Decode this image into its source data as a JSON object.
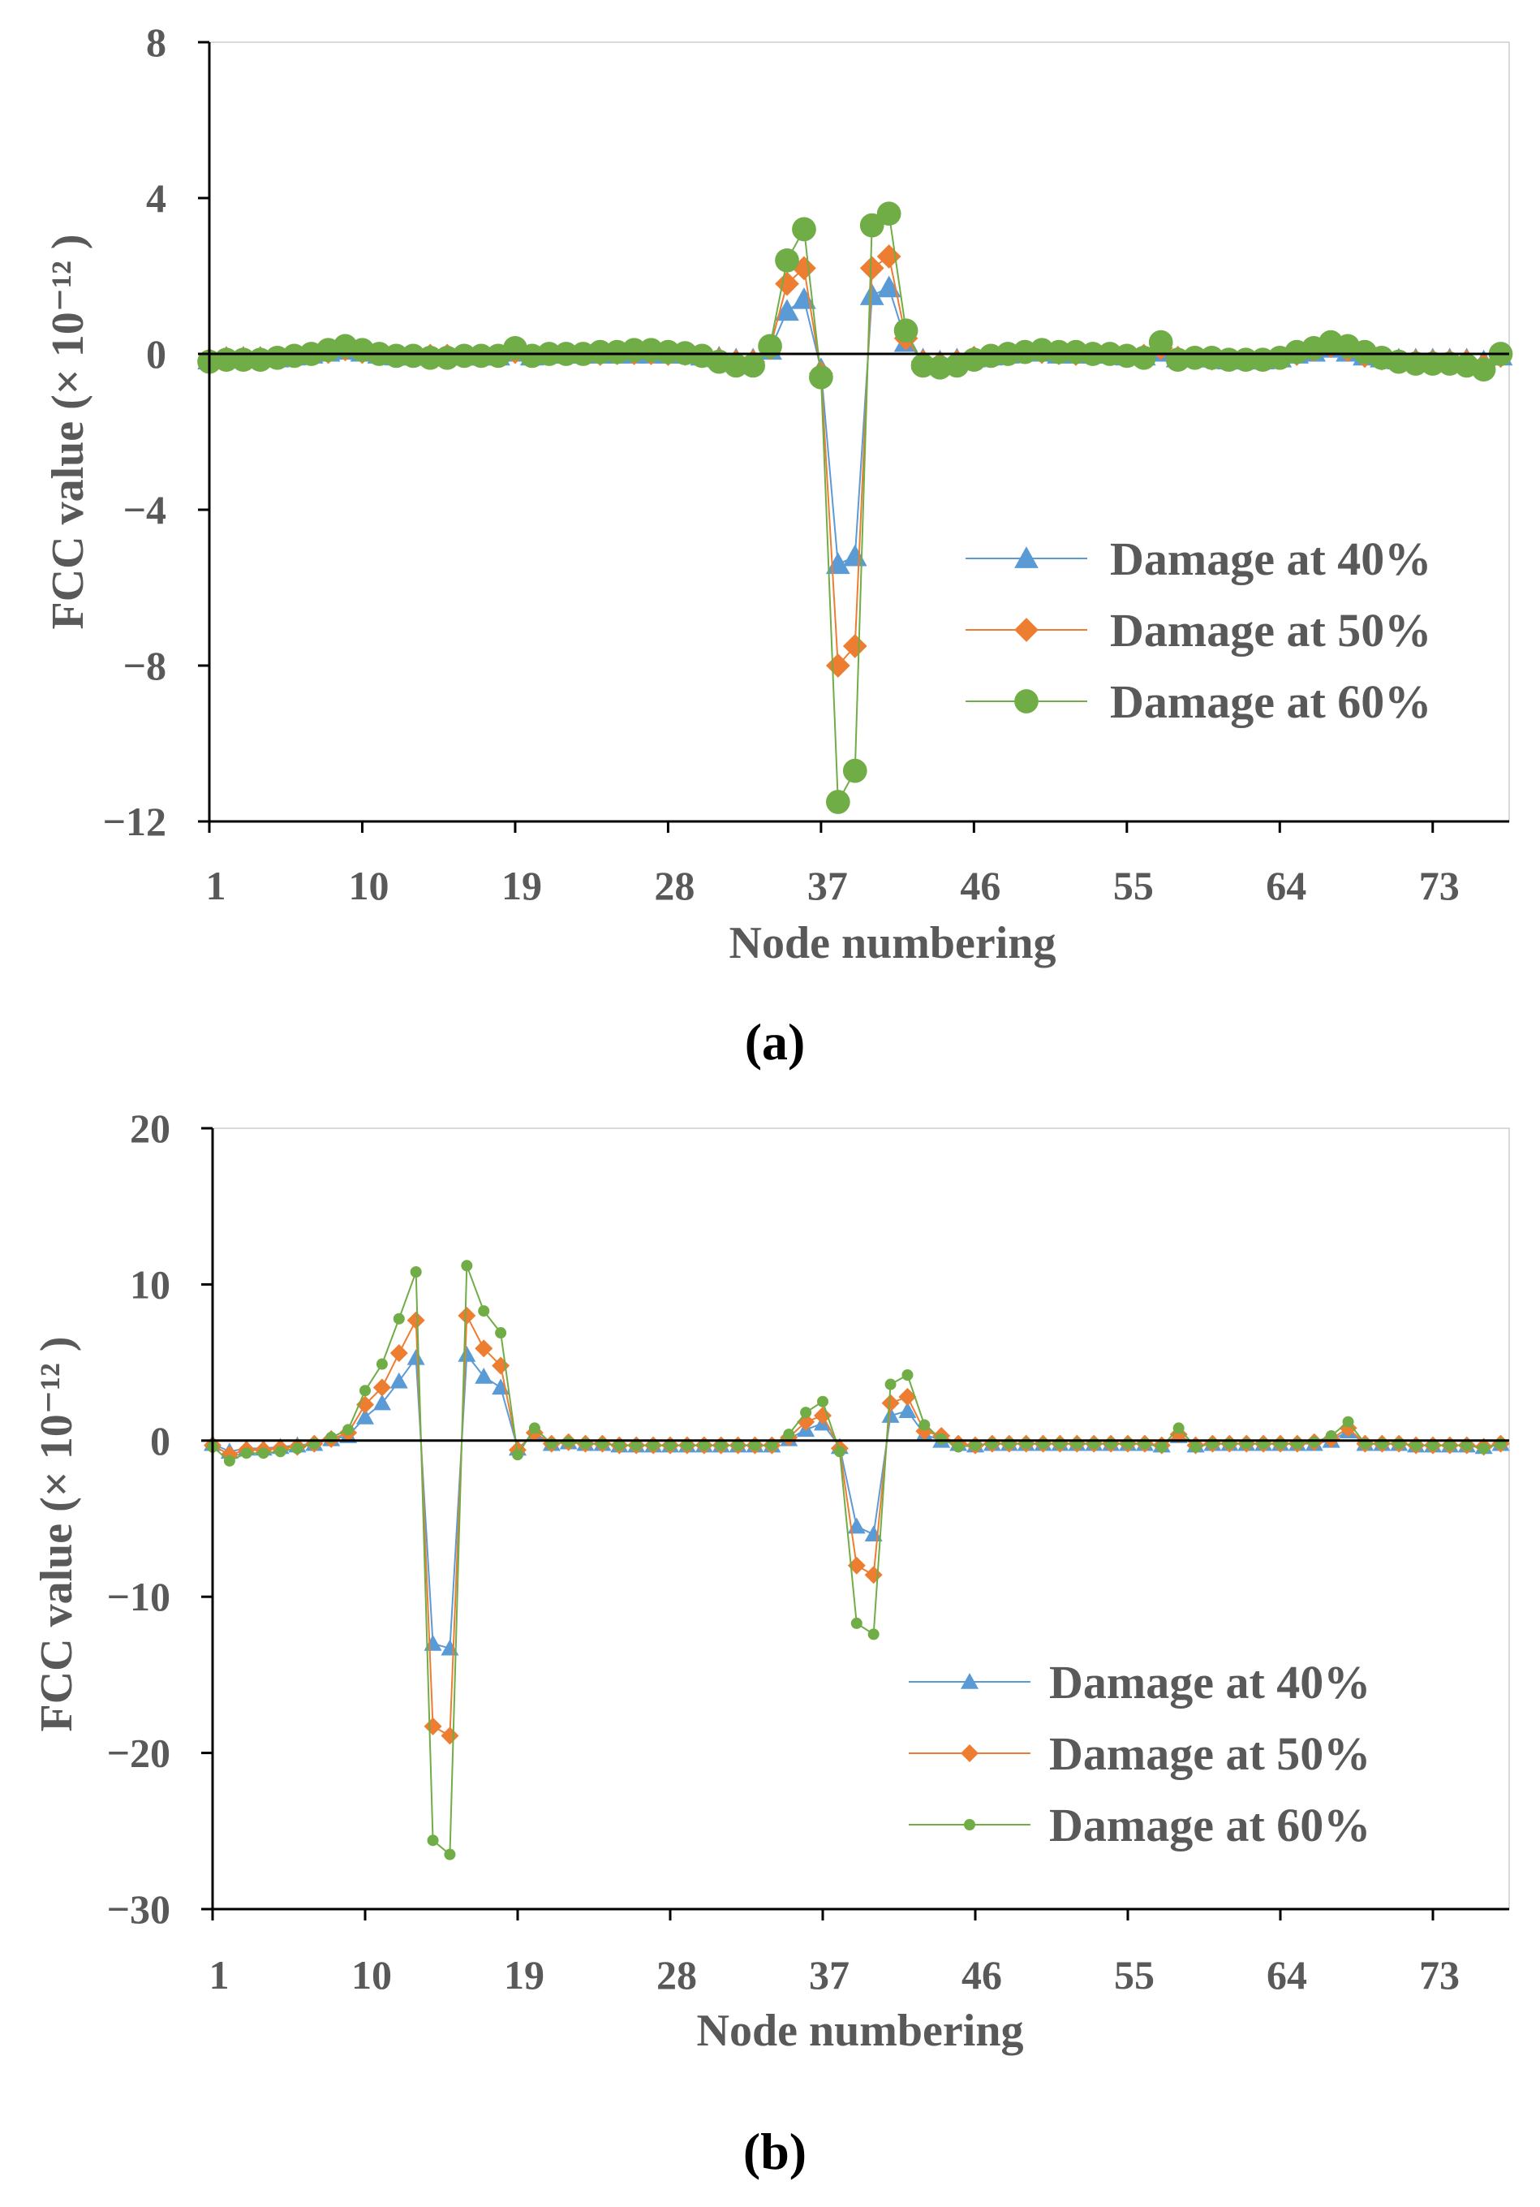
{
  "chart_data": [
    {
      "type": "line",
      "panel": "a",
      "caption": "(a)",
      "xlabel": "Node numbering",
      "ylabel": "FCC value (× 10⁻¹² )",
      "ylim": [
        -12,
        8
      ],
      "yticks": [
        8,
        4,
        0,
        -4,
        -8,
        -12
      ],
      "ytick_labels": [
        "8",
        "4",
        "0",
        "−4",
        "−8",
        "−12"
      ],
      "xlim": [
        1,
        77.5
      ],
      "xticks": [
        1,
        10,
        19,
        28,
        37,
        46,
        55,
        64,
        73
      ],
      "xtick_labels": [
        "1",
        "10",
        "19",
        "28",
        "37",
        "46",
        "55",
        "64",
        "73"
      ],
      "legend_position": "right",
      "series": [
        {
          "name": "Damage at 40%",
          "color": "#5b9bd5",
          "marker": "triangle",
          "values": [
            -0.15,
            -0.1,
            -0.1,
            -0.1,
            -0.1,
            -0.05,
            0,
            0.05,
            0.1,
            0.05,
            0,
            -0.05,
            -0.05,
            -0.05,
            -0.05,
            -0.05,
            -0.05,
            -0.05,
            0.05,
            -0.05,
            0,
            0,
            0,
            0,
            0,
            0,
            0,
            0,
            0,
            -0.05,
            -0.1,
            -0.15,
            -0.15,
            0.1,
            1.1,
            1.4,
            -0.4,
            -5.4,
            -5.2,
            1.5,
            1.7,
            0.3,
            -0.15,
            -0.2,
            -0.15,
            -0.1,
            -0.05,
            0,
            0.05,
            0.05,
            0,
            0,
            0,
            0,
            -0.05,
            -0.05,
            0.05,
            -0.1,
            -0.1,
            -0.1,
            -0.15,
            -0.15,
            -0.15,
            -0.1,
            0,
            0.05,
            0.15,
            0.05,
            -0.05,
            -0.1,
            -0.15,
            -0.15,
            -0.15,
            -0.15,
            -0.15,
            -0.2,
            -0.05
          ]
        },
        {
          "name": "Damage at 50%",
          "color": "#ed7d31",
          "marker": "diamond",
          "values": [
            -0.15,
            -0.12,
            -0.12,
            -0.12,
            -0.1,
            -0.05,
            0,
            0.05,
            0.12,
            0.05,
            0,
            -0.05,
            -0.05,
            -0.05,
            -0.05,
            -0.05,
            -0.05,
            -0.05,
            0.05,
            -0.05,
            0,
            0,
            0,
            0,
            0.02,
            0.02,
            0.02,
            0,
            0,
            -0.05,
            -0.15,
            -0.2,
            -0.2,
            0.15,
            1.8,
            2.2,
            -0.5,
            -8.0,
            -7.5,
            2.2,
            2.5,
            0.4,
            -0.2,
            -0.25,
            -0.2,
            -0.1,
            -0.05,
            0,
            0.05,
            0.05,
            0.02,
            0,
            0,
            0,
            -0.05,
            -0.05,
            0.15,
            -0.1,
            -0.1,
            -0.12,
            -0.15,
            -0.15,
            -0.15,
            -0.1,
            0,
            0.1,
            0.2,
            0.1,
            -0.05,
            -0.12,
            -0.2,
            -0.2,
            -0.2,
            -0.2,
            -0.2,
            -0.3,
            -0.05
          ]
        },
        {
          "name": "Damage at 60%",
          "color": "#70ad47",
          "marker": "circle",
          "values": [
            -0.2,
            -0.15,
            -0.15,
            -0.15,
            -0.1,
            -0.05,
            0,
            0.1,
            0.2,
            0.1,
            0,
            -0.05,
            -0.05,
            -0.1,
            -0.1,
            -0.05,
            -0.05,
            -0.05,
            0.15,
            -0.05,
            0,
            0,
            0,
            0.05,
            0.05,
            0.1,
            0.1,
            0.05,
            0.02,
            -0.05,
            -0.2,
            -0.3,
            -0.3,
            0.2,
            2.4,
            3.2,
            -0.6,
            -11.5,
            -10.7,
            3.3,
            3.6,
            0.6,
            -0.3,
            -0.35,
            -0.3,
            -0.15,
            -0.05,
            0,
            0.05,
            0.1,
            0.05,
            0.05,
            0,
            0,
            -0.05,
            -0.1,
            0.3,
            -0.15,
            -0.1,
            -0.1,
            -0.15,
            -0.15,
            -0.15,
            -0.1,
            0.05,
            0.15,
            0.3,
            0.2,
            0.05,
            -0.1,
            -0.2,
            -0.25,
            -0.25,
            -0.25,
            -0.3,
            -0.4,
            0
          ]
        }
      ]
    },
    {
      "type": "line",
      "panel": "b",
      "caption": "(b)",
      "xlabel": "Node numbering",
      "ylabel": "FCC value (× 10⁻¹² )",
      "ylim": [
        -30,
        20
      ],
      "yticks": [
        20,
        10,
        0,
        -10,
        -20,
        -30
      ],
      "ytick_labels": [
        "20",
        "10",
        "0",
        "−10",
        "−20",
        "−30"
      ],
      "xlim": [
        1,
        77.5
      ],
      "xticks": [
        1,
        10,
        19,
        28,
        37,
        46,
        55,
        64,
        73
      ],
      "xtick_labels": [
        "1",
        "10",
        "19",
        "28",
        "37",
        "46",
        "55",
        "64",
        "73"
      ],
      "legend_position": "bottom-right",
      "series": [
        {
          "name": "Damage at 40%",
          "color": "#5b9bd5",
          "marker": "triangle",
          "values": [
            -0.2,
            -0.7,
            -0.5,
            -0.5,
            -0.4,
            -0.3,
            -0.2,
            0.1,
            0.3,
            1.5,
            2.4,
            3.8,
            5.3,
            -13,
            -13.3,
            5.5,
            4.1,
            3.4,
            -0.5,
            0.4,
            -0.2,
            -0.1,
            -0.2,
            -0.2,
            -0.3,
            -0.3,
            -0.3,
            -0.3,
            -0.3,
            -0.3,
            -0.3,
            -0.3,
            -0.3,
            -0.3,
            0.1,
            0.7,
            1.1,
            -0.4,
            -5.5,
            -6,
            1.6,
            1.9,
            0.4,
            0,
            -0.2,
            -0.3,
            -0.2,
            -0.2,
            -0.2,
            -0.2,
            -0.2,
            -0.2,
            -0.2,
            -0.2,
            -0.2,
            -0.2,
            -0.3,
            0.3,
            -0.3,
            -0.2,
            -0.2,
            -0.2,
            -0.2,
            -0.2,
            -0.2,
            -0.2,
            0,
            0.6,
            -0.2,
            -0.2,
            -0.2,
            -0.3,
            -0.3,
            -0.3,
            -0.3,
            -0.4,
            -0.2
          ]
        },
        {
          "name": "Damage at 50%",
          "color": "#ed7d31",
          "marker": "diamond",
          "values": [
            -0.3,
            -0.9,
            -0.6,
            -0.6,
            -0.5,
            -0.4,
            -0.2,
            0.1,
            0.5,
            2.3,
            3.4,
            5.6,
            7.7,
            -18.3,
            -18.9,
            8,
            5.9,
            4.8,
            -0.6,
            0.5,
            -0.2,
            -0.1,
            -0.2,
            -0.2,
            -0.3,
            -0.3,
            -0.3,
            -0.3,
            -0.3,
            -0.3,
            -0.3,
            -0.3,
            -0.3,
            -0.3,
            0.2,
            1.2,
            1.6,
            -0.5,
            -8,
            -8.6,
            2.4,
            2.8,
            0.6,
            0.3,
            -0.2,
            -0.3,
            -0.2,
            -0.2,
            -0.2,
            -0.2,
            -0.2,
            -0.2,
            -0.2,
            -0.2,
            -0.2,
            -0.2,
            -0.3,
            0.4,
            -0.3,
            -0.2,
            -0.2,
            -0.2,
            -0.2,
            -0.2,
            -0.2,
            -0.1,
            0.1,
            0.8,
            -0.2,
            -0.2,
            -0.2,
            -0.3,
            -0.3,
            -0.3,
            -0.3,
            -0.4,
            -0.2
          ]
        },
        {
          "name": "Damage at 60%",
          "color": "#70ad47",
          "marker": "dot",
          "values": [
            -0.4,
            -1.3,
            -0.8,
            -0.8,
            -0.7,
            -0.5,
            -0.2,
            0.2,
            0.7,
            3.2,
            4.9,
            7.8,
            10.8,
            -25.6,
            -26.5,
            11.2,
            8.3,
            6.9,
            -0.9,
            0.8,
            -0.2,
            -0.1,
            -0.2,
            -0.2,
            -0.3,
            -0.3,
            -0.3,
            -0.3,
            -0.3,
            -0.3,
            -0.3,
            -0.3,
            -0.3,
            -0.3,
            0.4,
            1.8,
            2.5,
            -0.7,
            -11.7,
            -12.4,
            3.6,
            4.2,
            1,
            0.1,
            -0.4,
            -0.3,
            -0.2,
            -0.2,
            -0.2,
            -0.2,
            -0.2,
            -0.2,
            -0.2,
            -0.2,
            -0.2,
            -0.2,
            -0.4,
            0.8,
            -0.4,
            -0.2,
            -0.2,
            -0.2,
            -0.2,
            -0.2,
            -0.2,
            -0.1,
            0.3,
            1.2,
            -0.2,
            -0.2,
            -0.2,
            -0.3,
            -0.3,
            -0.3,
            -0.3,
            -0.5,
            -0.2
          ]
        }
      ]
    }
  ]
}
